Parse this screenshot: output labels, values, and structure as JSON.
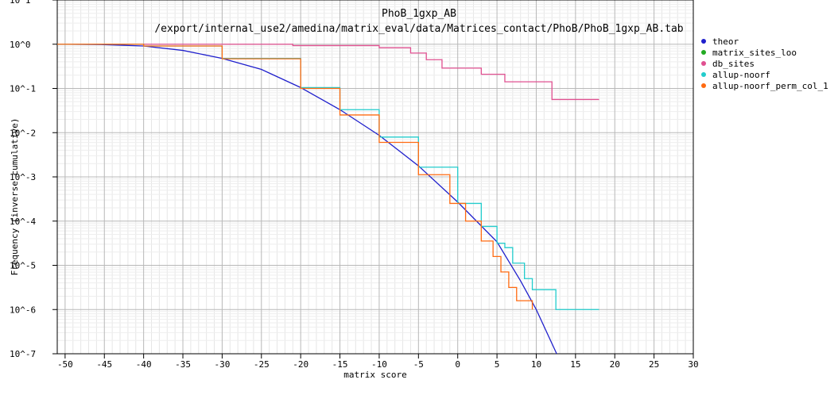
{
  "chart_data": {
    "type": "line",
    "title": "PhoB_1gxp_AB",
    "subtitle": "/export/internal_use2/amedina/matrix_eval/data/Matrices_contact/PhoB/PhoB_1gxp_AB.tab",
    "xlabel": "matrix score",
    "ylabel": "Frequency (inverse cumulative)",
    "xlim": [
      -51,
      30
    ],
    "ylim_log10": [
      -7,
      1
    ],
    "log_y": true,
    "grid": true,
    "legend_position": "right",
    "x_ticks": [
      -50,
      -45,
      -40,
      -35,
      -30,
      -25,
      -20,
      -15,
      -10,
      -5,
      0,
      5,
      10,
      15,
      20,
      25,
      30
    ],
    "x_tick_labels": [
      "-50",
      "-45",
      "-40",
      "-35",
      "-30",
      "-25",
      "-20",
      "-15",
      "-10",
      "-5",
      "0",
      "5",
      "10",
      "15",
      "20",
      "25",
      "30"
    ],
    "y_ticks_log10": [
      1,
      0,
      -1,
      -2,
      -3,
      -4,
      -5,
      -6,
      -7
    ],
    "y_tick_labels": [
      "10^1",
      "10^0",
      "10^-1",
      "10^-2",
      "10^-3",
      "10^-4",
      "10^-5",
      "10^-6",
      "10^-7"
    ],
    "series": [
      {
        "name": "theor",
        "color": "#1f1fcc",
        "step": false,
        "x": [
          -51,
          -45,
          -40,
          -35,
          -30,
          -25,
          -20,
          -15,
          -10,
          -5,
          0,
          5,
          8,
          10,
          12.6
        ],
        "y_log10": [
          0,
          -0.01,
          -0.04,
          -0.14,
          -0.32,
          -0.57,
          -0.98,
          -1.48,
          -2.06,
          -2.75,
          -3.57,
          -4.47,
          -5.35,
          -6.0,
          -7.0
        ]
      },
      {
        "name": "matrix_sites_loo",
        "color": "#22aa22",
        "step": false,
        "x": [],
        "y_log10": []
      },
      {
        "name": "db_sites",
        "color": "#e05090",
        "step": true,
        "x": [
          -51,
          -33,
          -21,
          -10,
          -6,
          -4,
          -2,
          3,
          6,
          12,
          18
        ],
        "y_log10": [
          0,
          0,
          -0.03,
          -0.08,
          -0.2,
          -0.35,
          -0.54,
          -0.68,
          -0.85,
          -1.25,
          -1.25
        ]
      },
      {
        "name": "allup-noorf",
        "color": "#22cccc",
        "step": true,
        "x": [
          -51,
          -40,
          -30,
          -20,
          -15,
          -10,
          -5,
          0,
          3,
          5,
          6,
          7,
          8.5,
          9.5,
          12.5,
          18
        ],
        "y_log10": [
          0,
          -0.04,
          -0.32,
          -0.98,
          -1.48,
          -2.1,
          -2.78,
          -3.6,
          -4.12,
          -4.5,
          -4.6,
          -4.95,
          -5.3,
          -5.55,
          -6.0,
          -6.0
        ]
      },
      {
        "name": "allup-noorf_perm_col_1",
        "color": "#ff6a10",
        "step": true,
        "x": [
          -51,
          -40,
          -30,
          -20,
          -15,
          -10,
          -5,
          -1,
          1,
          3,
          4.5,
          5.5,
          6.5,
          7.5,
          9.5
        ],
        "y_log10": [
          0,
          -0.04,
          -0.33,
          -1.0,
          -1.6,
          -2.22,
          -2.95,
          -3.6,
          -4.0,
          -4.45,
          -4.8,
          -5.15,
          -5.5,
          -5.8,
          -6.0
        ]
      }
    ]
  }
}
